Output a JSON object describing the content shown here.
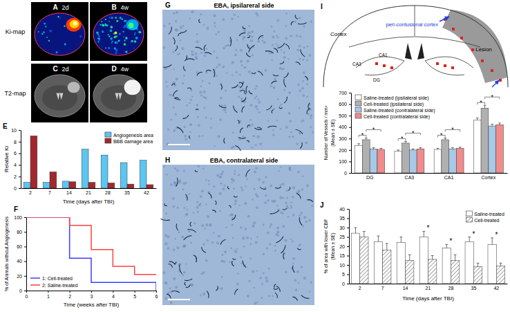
{
  "chart_data": [
    {
      "panel": "E",
      "type": "bar",
      "categories": [
        "2",
        "7",
        "14",
        "21",
        "28",
        "35",
        "42"
      ],
      "x_label": "Time (days after TBI)",
      "y_label": [
        "Relative Ki"
      ],
      "ylim": [
        0,
        10
      ],
      "yticks": [
        0,
        2,
        4,
        6,
        8,
        10
      ],
      "legend": "top-right",
      "series": [
        {
          "name": "Angiogenesis area",
          "color": "#5cc6f2",
          "values": [
            1.0,
            1.0,
            1.2,
            6.7,
            5.7,
            4.4,
            4.8
          ]
        },
        {
          "name": "BBB damage area",
          "color": "#a3282c",
          "values": [
            9.0,
            2.8,
            1.1,
            1.0,
            0.9,
            0.7,
            0.6
          ]
        }
      ]
    },
    {
      "panel": "F",
      "type": "step",
      "x_label": "Time (weeks after TBI)",
      "y_label": [
        "% of Animals without Angiogenesis"
      ],
      "xlim": [
        0,
        6
      ],
      "xticks": [
        0,
        1,
        2,
        3,
        4,
        5,
        6
      ],
      "ylim": [
        0,
        100
      ],
      "yticks": [
        0,
        20,
        40,
        60,
        80,
        100
      ],
      "legend": "bottom-left",
      "series": [
        {
          "name": "1: Cell-treated",
          "color": "#3c3cff",
          "x": [
            0,
            2,
            3,
            6
          ],
          "values": [
            100,
            44,
            11,
            0
          ]
        },
        {
          "name": "2: Saline-treated",
          "color": "#ff4040",
          "x": [
            0,
            2,
            3,
            4,
            5,
            6
          ],
          "values": [
            100,
            89,
            56,
            33,
            22,
            22
          ]
        }
      ]
    },
    {
      "type": "bar",
      "categories": [
        "DG",
        "CA3",
        "CA1",
        "Cortex"
      ],
      "y_label": [
        "Number of Vessels / mm²",
        "(Mean ± SE)"
      ],
      "ylim": [
        0,
        700
      ],
      "yticks": [
        0,
        100,
        200,
        300,
        400,
        500,
        600,
        700
      ],
      "legend": "top-left",
      "series": [
        {
          "name": "Saline-treated (ipsilateral side)",
          "color": "#ffffff",
          "values": [
            240,
            190,
            205,
            460
          ],
          "errors": [
            15,
            10,
            10,
            20
          ]
        },
        {
          "name": "Cell-treated (ipsilateral side)",
          "color": "#b0b0b0",
          "values": [
            290,
            260,
            290,
            565
          ],
          "errors": [
            15,
            15,
            15,
            25
          ]
        },
        {
          "name": "Saline-treated (contralateral side)",
          "color": "#a8c8e8",
          "values": [
            210,
            200,
            210,
            410
          ],
          "errors": [
            10,
            10,
            10,
            15
          ]
        },
        {
          "name": "Cell-treated (contralateral side)",
          "color": "#f08c8c",
          "values": [
            205,
            210,
            215,
            420
          ],
          "errors": [
            10,
            10,
            10,
            15
          ]
        }
      ],
      "significance": [
        {
          "category": "DG",
          "from": 0,
          "to": 1,
          "label": "*"
        },
        {
          "category": "DG",
          "from": 1,
          "to": 3,
          "label": "*"
        },
        {
          "category": "CA3",
          "from": 0,
          "to": 1,
          "label": "*"
        },
        {
          "category": "CA3",
          "from": 1,
          "to": 3,
          "label": "*"
        },
        {
          "category": "CA1",
          "from": 0,
          "to": 1,
          "label": "*"
        },
        {
          "category": "CA1",
          "from": 1,
          "to": 3,
          "label": "*"
        },
        {
          "category": "Cortex",
          "from": 0,
          "to": 1,
          "label": "*"
        },
        {
          "category": "Cortex",
          "from": 1,
          "to": 3,
          "label": "*"
        }
      ]
    },
    {
      "panel": "J",
      "type": "bar",
      "categories": [
        "2",
        "7",
        "14",
        "21",
        "28",
        "35",
        "42"
      ],
      "x_label": "Time (days after TBI)",
      "y_label": [
        "% of area with lower CBF",
        "(Mean ± SE)"
      ],
      "ylim": [
        0,
        40
      ],
      "yticks": [
        0,
        5,
        10,
        15,
        20,
        25,
        30,
        35,
        40
      ],
      "legend": "top-right",
      "series": [
        {
          "name": "Saline-treated",
          "color": "#ffffff",
          "values": [
            27,
            22.5,
            22,
            25,
            19,
            22.5,
            21
          ],
          "errors": [
            3,
            3,
            3,
            3,
            2,
            2.5,
            3.5
          ]
        },
        {
          "name": "Cell-treated",
          "color": "#8a8a8a",
          "values": [
            25,
            18,
            12.5,
            13,
            12.5,
            9,
            9.5
          ],
          "errors": [
            3,
            3.5,
            3,
            2,
            3,
            2,
            1.5
          ]
        }
      ],
      "significance": [
        {
          "category": "21",
          "label": "*"
        },
        {
          "category": "28",
          "label": "*"
        },
        {
          "category": "35",
          "label": "*"
        },
        {
          "category": "42",
          "label": "*"
        }
      ]
    }
  ],
  "figure": {
    "rows": [
      {
        "label": "Ki-map",
        "panels": [
          {
            "panel": "A",
            "time": "2d"
          },
          {
            "panel": "B",
            "time": "4w"
          }
        ]
      },
      {
        "label": "T2-map",
        "panels": [
          {
            "panel": "C",
            "time": "2d"
          },
          {
            "panel": "D",
            "time": "4w"
          }
        ]
      }
    ],
    "micrographs": [
      {
        "panel": "G",
        "title": "EBA, ipsilareral side"
      },
      {
        "panel": "H",
        "title": "EBA, contralateral side"
      }
    ],
    "diagram": {
      "panel": "I",
      "labels": {
        "peri": "peri-contusional cortex",
        "lesion": "Lesion",
        "cortex": "Cortex",
        "ca1": "CA1",
        "ca3": "CA3",
        "dg": "DG"
      }
    }
  }
}
